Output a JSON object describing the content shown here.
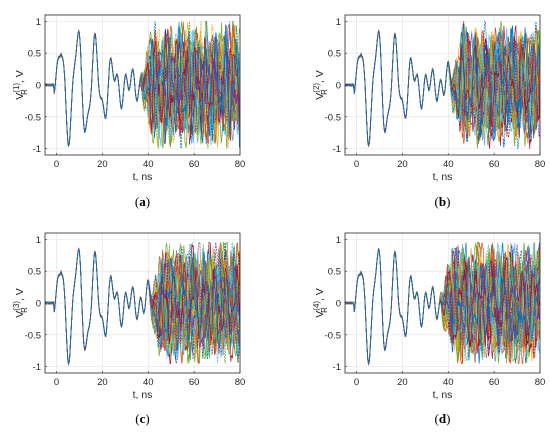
{
  "chart_data": [
    {
      "type": "line",
      "panel_label_text": "a",
      "xlabel": "t, ns",
      "ylabel_main": "V",
      "ylabel_sub": "R",
      "ylabel_sup": "(1)",
      "ylabel_suffix": ", V",
      "xlim": [
        -5,
        80
      ],
      "ylim": [
        -1.1,
        1.1
      ],
      "xticks": [
        0,
        20,
        40,
        60,
        80
      ],
      "yticks": [
        -1,
        -0.5,
        0,
        0.5,
        1
      ],
      "ytick_labels": [
        "-1",
        "-0.5",
        "0",
        "0.5",
        "1"
      ],
      "grid": true,
      "ensemble_note_values": {
        "signal_start_ns": 0,
        "divergence_start_ns": 40,
        "max_amplitude_v": 1.0
      }
    },
    {
      "type": "line",
      "panel_label_text": "b",
      "xlabel": "t, ns",
      "ylabel_main": "V",
      "ylabel_sub": "R",
      "ylabel_sup": "(2)",
      "ylabel_suffix": ", V",
      "xlim": [
        -5,
        80
      ],
      "ylim": [
        -1.1,
        1.1
      ],
      "xticks": [
        0,
        20,
        40,
        60,
        80
      ],
      "yticks": [
        -1,
        -0.5,
        0,
        0.5,
        1
      ],
      "ytick_labels": [
        "-1",
        "-0.5",
        "0",
        "0.5",
        "1"
      ],
      "grid": true,
      "ensemble_note_values": {
        "signal_start_ns": 0,
        "divergence_start_ns": 44,
        "max_amplitude_v": 1.0
      }
    },
    {
      "type": "line",
      "panel_label_text": "c",
      "xlabel": "t, ns",
      "ylabel_main": "V",
      "ylabel_sub": "R",
      "ylabel_sup": "(3)",
      "ylabel_suffix": ", V",
      "xlim": [
        -5,
        80
      ],
      "ylim": [
        -1.1,
        1.1
      ],
      "xticks": [
        0,
        20,
        40,
        60,
        80
      ],
      "yticks": [
        -1,
        -0.5,
        0,
        0.5,
        1
      ],
      "ytick_labels": [
        "-1",
        "-0.5",
        "0",
        "0.5",
        "1"
      ],
      "grid": true,
      "ensemble_note_values": {
        "signal_start_ns": 0,
        "divergence_start_ns": 44,
        "max_amplitude_v": 0.95
      }
    },
    {
      "type": "line",
      "panel_label_text": "d",
      "xlabel": "t, ns",
      "ylabel_main": "V",
      "ylabel_sub": "R",
      "ylabel_sup": "(4)",
      "ylabel_suffix": ", V",
      "xlim": [
        -5,
        80
      ],
      "ylim": [
        -1.1,
        1.1
      ],
      "xticks": [
        0,
        20,
        40,
        60,
        80
      ],
      "yticks": [
        -1,
        -0.5,
        0,
        0.5,
        1
      ],
      "ytick_labels": [
        "-1",
        "-0.5",
        "0",
        "0.5",
        "1"
      ],
      "grid": true,
      "ensemble_note_values": {
        "signal_start_ns": 0,
        "divergence_start_ns": 40,
        "max_amplitude_v": 0.95
      }
    }
  ],
  "series_colors": [
    "#0072bd",
    "#d95319",
    "#edb120",
    "#7e2f8e",
    "#77ac30",
    "#4dbeee",
    "#a2142f"
  ]
}
